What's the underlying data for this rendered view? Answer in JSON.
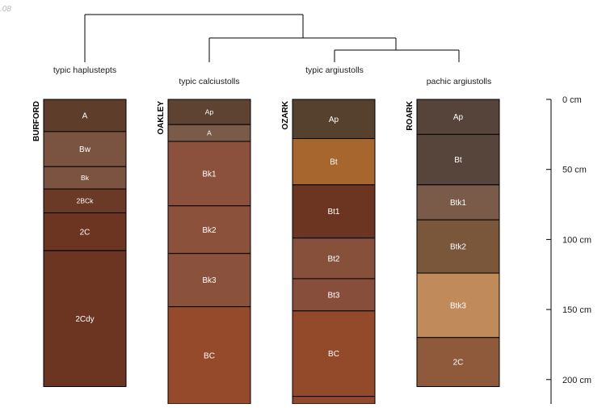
{
  "corner_text": ".08",
  "colors": {
    "line": "#000000",
    "label": "#1a1a1a",
    "horizon_text": "#ffffff"
  },
  "taxa": [
    "typic haplustepts",
    "typic calciustolls",
    "typic argiustolls",
    "pachic argiustolls"
  ],
  "profiles": [
    {
      "name": "BURFORD",
      "bottom_cm": 205,
      "horizons": [
        {
          "name": "A",
          "top": 0,
          "bottom": 23,
          "color": "#5e3d2b"
        },
        {
          "name": "Bw",
          "top": 23,
          "bottom": 48,
          "color": "#7b5341"
        },
        {
          "name": "Bk",
          "top": 48,
          "bottom": 64,
          "color": "#7c5240"
        },
        {
          "name": "2BCk",
          "top": 64,
          "bottom": 81,
          "color": "#6b3a26"
        },
        {
          "name": "2C",
          "top": 81,
          "bottom": 108,
          "color": "#6b3522"
        },
        {
          "name": "2Cdy",
          "top": 108,
          "bottom": 205,
          "color": "#6b3521"
        }
      ]
    },
    {
      "name": "OAKLEY",
      "bottom_cm": 220,
      "horizons": [
        {
          "name": "Ap",
          "top": 0,
          "bottom": 18,
          "color": "#5e4333"
        },
        {
          "name": "A",
          "top": 18,
          "bottom": 30,
          "color": "#7a5a48"
        },
        {
          "name": "Bk1",
          "top": 30,
          "bottom": 76,
          "color": "#8c513c"
        },
        {
          "name": "Bk2",
          "top": 76,
          "bottom": 110,
          "color": "#8b513b"
        },
        {
          "name": "Bk3",
          "top": 110,
          "bottom": 148,
          "color": "#8a523c"
        },
        {
          "name": "BC",
          "top": 148,
          "bottom": 220,
          "color": "#944a2b"
        }
      ]
    },
    {
      "name": "OZARK",
      "bottom_cm": 220,
      "horizons": [
        {
          "name": "Ap",
          "top": 0,
          "bottom": 28,
          "color": "#56412f"
        },
        {
          "name": "Bt",
          "top": 28,
          "bottom": 61,
          "color": "#a8662f"
        },
        {
          "name": "Bt1",
          "top": 61,
          "bottom": 99,
          "color": "#6b3522"
        },
        {
          "name": "Bt2",
          "top": 99,
          "bottom": 128,
          "color": "#87503b"
        },
        {
          "name": "Bt3",
          "top": 128,
          "bottom": 151,
          "color": "#874f3b"
        },
        {
          "name": "BC",
          "top": 151,
          "bottom": 212,
          "color": "#934a2b"
        },
        {
          "name": "",
          "top": 212,
          "bottom": 220,
          "color": "#92482a"
        }
      ]
    },
    {
      "name": "ROARK",
      "bottom_cm": 205,
      "horizons": [
        {
          "name": "Ap",
          "top": 0,
          "bottom": 25,
          "color": "#56443a"
        },
        {
          "name": "Bt",
          "top": 25,
          "bottom": 61,
          "color": "#57443a"
        },
        {
          "name": "Btk1",
          "top": 61,
          "bottom": 86,
          "color": "#7a5a48"
        },
        {
          "name": "Btk2",
          "top": 86,
          "bottom": 124,
          "color": "#7a573b"
        },
        {
          "name": "Btk3",
          "top": 124,
          "bottom": 170,
          "color": "#c08a5a"
        },
        {
          "name": "2C",
          "top": 170,
          "bottom": 205,
          "color": "#8e5a3b"
        }
      ]
    }
  ],
  "depth_axis": {
    "max_cm": 220,
    "ticks": [
      {
        "cm": 0,
        "label": "0 cm"
      },
      {
        "cm": 50,
        "label": "50 cm"
      },
      {
        "cm": 100,
        "label": "100 cm"
      },
      {
        "cm": 150,
        "label": "150 cm"
      },
      {
        "cm": 200,
        "label": "200 cm"
      }
    ]
  }
}
